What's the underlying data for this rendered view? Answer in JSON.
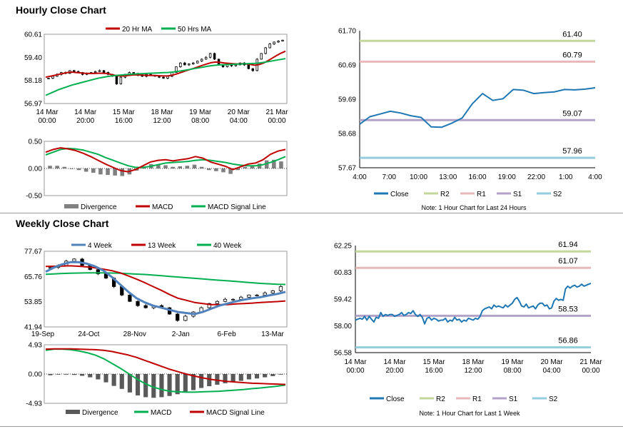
{
  "sections": {
    "hourly_title": "Hourly Close Chart",
    "weekly_title": "Weekly Close Chart"
  },
  "colors": {
    "red": "#c00000",
    "green": "#00b050",
    "blue": "#4f81bd",
    "close": "#1f78b4",
    "r2": "#c4d79b",
    "r1": "#e6b9b8",
    "s1": "#b3a2c7",
    "s2": "#93cddd",
    "divergence": "#808080"
  },
  "chart_data": [
    {
      "id": "hourly_price",
      "type": "candlestick",
      "legend": [
        "20 Hr MA",
        "50 Hrs MA"
      ],
      "yticks": [
        "60.61",
        "59.40",
        "58.18",
        "56.97"
      ],
      "ylim": [
        56.97,
        60.61
      ],
      "xticks": [
        [
          "14 Mar",
          "00:00"
        ],
        [
          "14 Mar",
          "20:00"
        ],
        [
          "15 Mar",
          "16:00"
        ],
        [
          "18 Mar",
          "12:00"
        ],
        [
          "19 Mar",
          "08:00"
        ],
        [
          "20 Mar",
          "04:00"
        ],
        [
          "21 Mar",
          "00:00"
        ]
      ],
      "close": [
        58.3,
        58.4,
        58.5,
        58.6,
        58.55,
        58.7,
        58.65,
        58.6,
        58.5,
        58.55,
        58.6,
        58.65,
        58.7,
        58.6,
        58.5,
        58.4,
        58.0,
        58.35,
        58.5,
        58.6,
        58.55,
        58.45,
        58.4,
        58.5,
        58.45,
        58.4,
        58.35,
        58.3,
        58.4,
        58.6,
        58.9,
        59.1,
        59.0,
        59.05,
        59.1,
        59.2,
        59.3,
        59.4,
        59.6,
        59.3,
        59.0,
        58.9,
        59.0,
        58.95,
        59.0,
        59.1,
        59.0,
        58.8,
        58.7,
        59.3,
        59.6,
        59.9,
        60.1,
        60.2,
        60.25,
        60.3
      ],
      "ma20": [
        58.35,
        58.4,
        58.45,
        58.5,
        58.55,
        58.6,
        58.62,
        58.6,
        58.58,
        58.56,
        58.55,
        58.55,
        58.56,
        58.56,
        58.55,
        58.5,
        58.45,
        58.42,
        58.42,
        58.45,
        58.47,
        58.48,
        58.47,
        58.45,
        58.45,
        58.44,
        58.43,
        58.42,
        58.42,
        58.46,
        58.52,
        58.6,
        58.68,
        58.75,
        58.82,
        58.9,
        58.98,
        59.05,
        59.12,
        59.15,
        59.13,
        59.1,
        59.08,
        59.06,
        59.05,
        59.06,
        59.05,
        59.02,
        58.98,
        59.02,
        59.1,
        59.22,
        59.36,
        59.5,
        59.62,
        59.72
      ],
      "ma50": [
        57.4,
        57.5,
        57.6,
        57.7,
        57.78,
        57.86,
        57.94,
        58.0,
        58.06,
        58.12,
        58.18,
        58.24,
        58.3,
        58.34,
        58.38,
        58.42,
        58.44,
        58.46,
        58.48,
        58.5,
        58.52,
        58.53,
        58.54,
        58.55,
        58.56,
        58.57,
        58.58,
        58.59,
        58.6,
        58.62,
        58.65,
        58.68,
        58.72,
        58.76,
        58.8,
        58.84,
        58.88,
        58.92,
        58.96,
        58.98,
        59.0,
        59.01,
        59.02,
        59.03,
        59.04,
        59.05,
        59.06,
        59.07,
        59.08,
        59.1,
        59.13,
        59.17,
        59.21,
        59.25,
        59.29,
        59.33
      ]
    },
    {
      "id": "hourly_macd",
      "type": "line+bar",
      "legend": [
        "Divergence",
        "MACD",
        "MACD Signal Line"
      ],
      "yticks": [
        "0.50",
        "0.00",
        "-0.50"
      ],
      "ylim": [
        -0.5,
        0.5
      ],
      "macd": [
        0.3,
        0.35,
        0.38,
        0.36,
        0.33,
        0.28,
        0.22,
        0.15,
        0.08,
        0.02,
        -0.04,
        -0.06,
        -0.02,
        0.05,
        0.12,
        0.15,
        0.16,
        0.14,
        0.16,
        0.18,
        0.22,
        0.19,
        0.12,
        0.08,
        0.04,
        -0.02,
        0.03,
        0.08,
        0.1,
        0.16,
        0.26,
        0.32,
        0.35
      ],
      "signal": [
        0.25,
        0.3,
        0.35,
        0.37,
        0.36,
        0.34,
        0.3,
        0.26,
        0.2,
        0.15,
        0.1,
        0.05,
        0.02,
        0.02,
        0.04,
        0.07,
        0.1,
        0.11,
        0.12,
        0.13,
        0.15,
        0.16,
        0.15,
        0.13,
        0.11,
        0.08,
        0.06,
        0.05,
        0.05,
        0.07,
        0.11,
        0.16,
        0.22
      ]
    },
    {
      "id": "hourly_levels",
      "type": "line",
      "legend": [
        "Close",
        "R2",
        "R1",
        "S1",
        "S2"
      ],
      "note": "Note: 1 Hour Chart for Last 24 Hours",
      "yticks": [
        "61.70",
        "60.69",
        "59.69",
        "58.68",
        "57.67"
      ],
      "ylim": [
        57.67,
        61.7
      ],
      "xticks": [
        "4:00",
        "7:00",
        "10:00",
        "13:00",
        "16:00",
        "19:00",
        "22:00",
        "1:00",
        "4:00"
      ],
      "levels": {
        "R2": 61.4,
        "R1": 60.79,
        "S1": 59.07,
        "S2": 57.96
      },
      "level_labels": [
        "61.40",
        "60.79",
        "59.07",
        "57.96"
      ],
      "close": [
        58.95,
        59.17,
        59.25,
        59.33,
        59.28,
        59.2,
        59.15,
        58.87,
        58.86,
        58.98,
        59.13,
        59.55,
        59.85,
        59.65,
        59.7,
        59.97,
        59.95,
        59.85,
        59.88,
        59.9,
        59.97,
        59.96,
        59.98,
        60.02
      ]
    },
    {
      "id": "weekly_price",
      "type": "candlestick",
      "legend": [
        "4 Week",
        "13 Week",
        "40 Week"
      ],
      "yticks": [
        "77.67",
        "65.76",
        "53.85",
        "41.94"
      ],
      "ylim": [
        41.94,
        77.67
      ],
      "xticks": [
        "19-Sep",
        "24-Oct",
        "28-Nov",
        "2-Jan",
        "6-Feb",
        "13-Mar"
      ],
      "close": [
        70,
        71,
        73,
        74,
        71,
        69,
        67,
        65,
        61,
        57,
        54,
        52,
        51,
        52,
        51,
        48,
        45,
        47,
        49,
        51,
        53,
        54,
        55,
        55,
        56,
        57,
        57,
        58,
        59,
        61
      ],
      "ma4": [
        68,
        70,
        71.5,
        72.5,
        72.5,
        71.8,
        70.5,
        68.5,
        65.5,
        62,
        58.5,
        55.5,
        53.5,
        52,
        51,
        50,
        49,
        48.5,
        48,
        49,
        50.5,
        52,
        53,
        54,
        54.8,
        55.5,
        56,
        56.8,
        57.5,
        58.5
      ],
      "ma13": [
        70.5,
        70.6,
        70.7,
        70.8,
        70.6,
        70.3,
        69.8,
        69.2,
        68.5,
        67.5,
        66,
        64.5,
        62.8,
        61,
        59.2,
        57.2,
        55.5,
        54.5,
        53.5,
        53,
        52.5,
        52.5,
        52.5,
        52.8,
        53,
        53.2,
        53.5,
        53.7,
        53.9,
        54.2
      ],
      "ma40": [
        66.8,
        67,
        67.2,
        67.3,
        67.4,
        67.5,
        67.5,
        67.5,
        67.4,
        67.3,
        67.1,
        66.9,
        66.7,
        66.4,
        66.1,
        65.8,
        65.5,
        65.2,
        64.9,
        64.6,
        64.3,
        64.0,
        63.7,
        63.4,
        63.1,
        62.8,
        62.5,
        62.3,
        62.1,
        62.0
      ]
    },
    {
      "id": "weekly_macd",
      "type": "line+bar",
      "legend": [
        "Divergence",
        "MACD",
        "MACD Signal Line"
      ],
      "yticks": [
        "4.93",
        "0.00",
        "-4.93"
      ],
      "ylim": [
        -4.93,
        4.93
      ],
      "macd": [
        4.0,
        4.2,
        4.2,
        4.1,
        3.9,
        3.6,
        3.2,
        2.6,
        1.8,
        1.0,
        0.1,
        -0.8,
        -1.6,
        -2.2,
        -2.6,
        -2.9,
        -3.0,
        -3.05,
        -3.05,
        -3.0,
        -2.95,
        -2.9,
        -2.8,
        -2.7,
        -2.6,
        -2.45,
        -2.35,
        -2.2,
        -2.05,
        -1.85
      ],
      "signal": [
        4.2,
        4.25,
        4.25,
        4.25,
        4.2,
        4.15,
        4.1,
        4.0,
        3.8,
        3.5,
        3.2,
        2.8,
        2.3,
        1.8,
        1.3,
        0.8,
        0.4,
        0.0,
        -0.35,
        -0.65,
        -0.9,
        -1.1,
        -1.25,
        -1.35,
        -1.45,
        -1.55,
        -1.6,
        -1.65,
        -1.7,
        -1.75
      ]
    },
    {
      "id": "weekly_levels",
      "type": "line",
      "legend": [
        "Close",
        "R2",
        "R1",
        "S1",
        "S2"
      ],
      "note": "Note: 1 Hour Chart for Last 1 Week",
      "yticks": [
        "62.25",
        "60.83",
        "59.42",
        "58.00",
        "56.58"
      ],
      "ylim": [
        56.58,
        62.25
      ],
      "xticks": [
        [
          "14 Mar",
          "00:00"
        ],
        [
          "14 Mar",
          "20:00"
        ],
        [
          "15 Mar",
          "16:00"
        ],
        [
          "18 Mar",
          "12:00"
        ],
        [
          "19 Mar",
          "08:00"
        ],
        [
          "20 Mar",
          "04:00"
        ],
        [
          "21 Mar",
          "00:00"
        ]
      ],
      "levels": {
        "R2": 61.94,
        "R1": 61.07,
        "S1": 58.53,
        "S2": 56.86
      },
      "level_labels": [
        "61.94",
        "61.07",
        "58.53",
        "56.86"
      ],
      "close": [
        58.3,
        58.35,
        58.4,
        58.35,
        58.5,
        58.3,
        58.5,
        58.35,
        58.2,
        58.45,
        58.4,
        58.7,
        58.5,
        58.6,
        58.55,
        58.6,
        58.6,
        58.5,
        58.55,
        58.6,
        58.7,
        58.55,
        58.6,
        58.7,
        58.65,
        58.8,
        58.6,
        58.5,
        58.6,
        58.45,
        58.1,
        58.4,
        58.45,
        58.3,
        58.4,
        58.35,
        58.25,
        58.3,
        58.3,
        58.4,
        58.2,
        58.3,
        58.25,
        58.45,
        58.3,
        58.35,
        58.2,
        58.3,
        58.25,
        58.4,
        58.35,
        58.3,
        58.4,
        58.35,
        58.5,
        58.8,
        58.9,
        58.95,
        59.0,
        58.9,
        59.1,
        59.0,
        59.05,
        59.0,
        58.95,
        59.1,
        59.0,
        59.1,
        59.2,
        59.4,
        59.5,
        59.3,
        59.05,
        59.0,
        59.15,
        58.95,
        59.0,
        59.05,
        58.9,
        59.1,
        59.2,
        59.2,
        59.05,
        59.1,
        58.9,
        58.95,
        59.3,
        59.45,
        59.35,
        59.4,
        59.35,
        59.95,
        60.1,
        60.0,
        60.1,
        60.15,
        60.05,
        60.1,
        60.2,
        60.1,
        60.15,
        60.2,
        60.25
      ]
    }
  ]
}
